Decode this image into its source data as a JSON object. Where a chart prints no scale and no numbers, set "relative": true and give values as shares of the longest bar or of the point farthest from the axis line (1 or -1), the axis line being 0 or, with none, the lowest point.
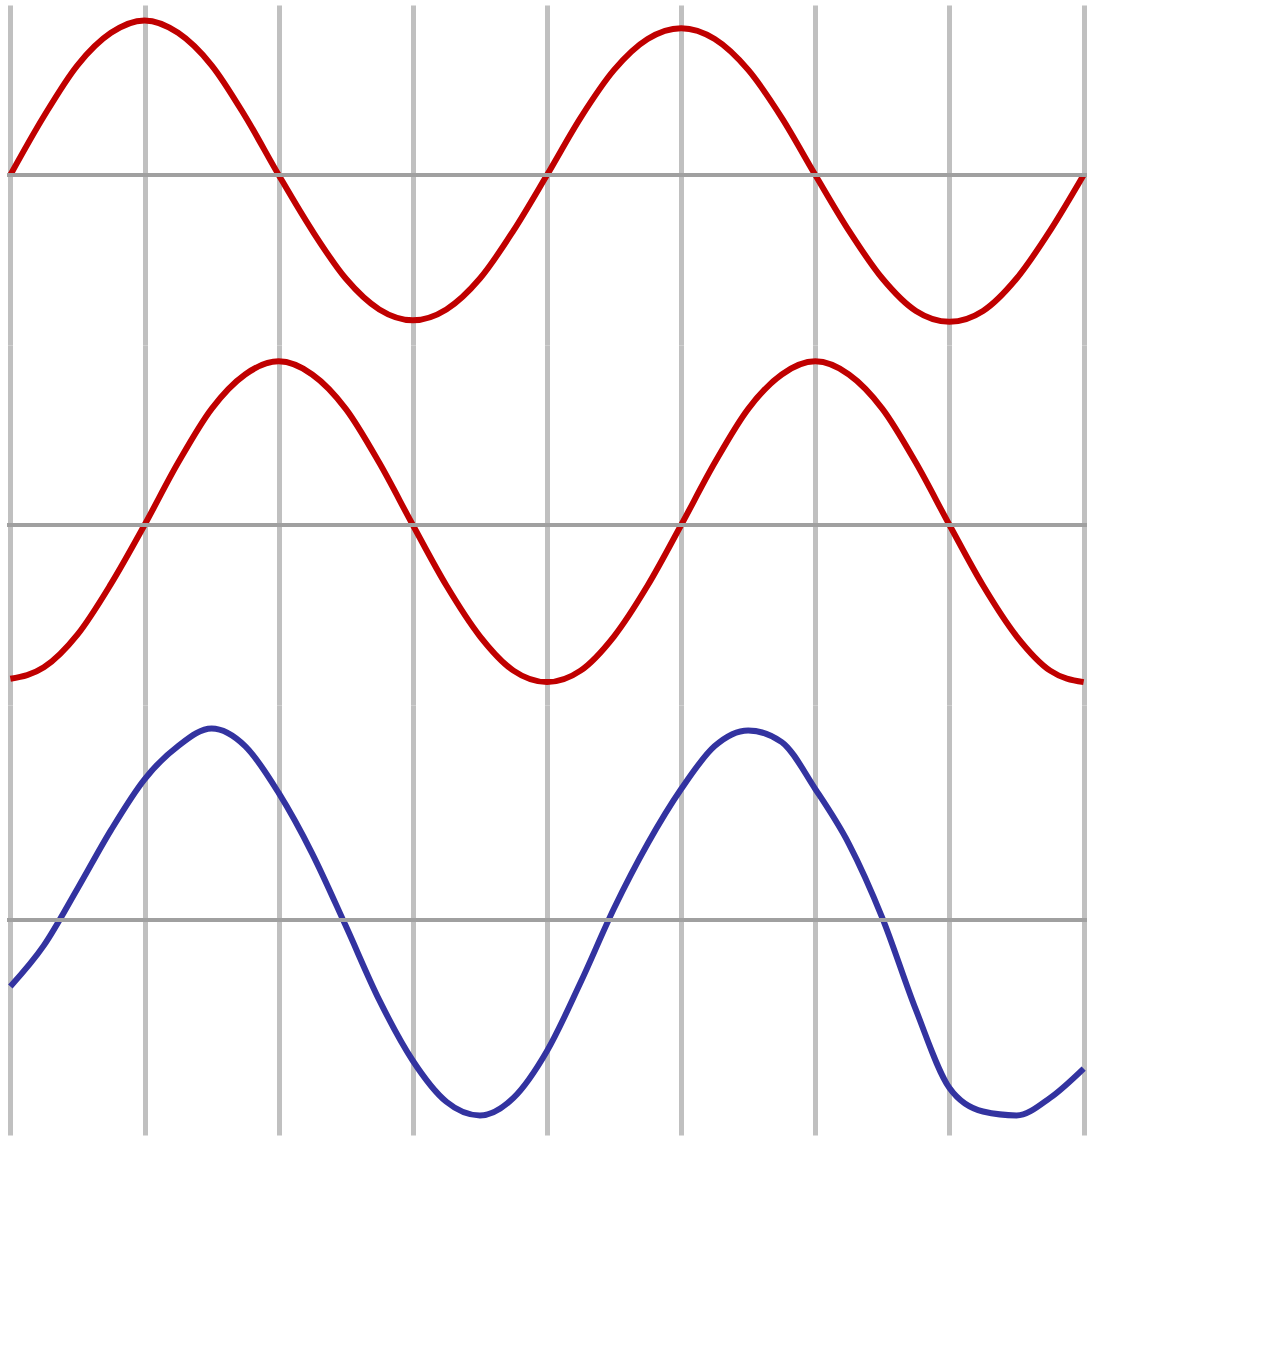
{
  "chart_data": [
    {
      "type": "line",
      "relative": true,
      "grid": true,
      "categories": [
        null,
        null,
        null,
        null,
        null,
        null,
        null,
        null,
        null,
        null,
        null,
        null,
        null,
        null,
        null,
        null,
        null,
        null,
        null,
        null,
        null,
        null,
        null,
        null,
        null,
        null,
        null,
        null,
        null,
        null,
        null,
        null,
        null
      ],
      "series": [
        {
          "color": "#c00000",
          "values": [
            0,
            0.38,
            0.71,
            0.92,
            1,
            0.92,
            0.71,
            0.38,
            0,
            -0.36,
            -0.67,
            -0.87,
            -0.94,
            -0.87,
            -0.67,
            -0.36,
            0,
            0.37,
            0.68,
            0.88,
            0.95,
            0.88,
            0.68,
            0.37,
            0,
            -0.36,
            -0.67,
            -0.88,
            -0.95,
            -0.88,
            -0.67,
            -0.36,
            0
          ]
        }
      ]
    },
    {
      "type": "line",
      "relative": true,
      "grid": true,
      "categories": [
        null,
        null,
        null,
        null,
        null,
        null,
        null,
        null,
        null,
        null,
        null,
        null,
        null,
        null,
        null,
        null,
        null,
        null,
        null,
        null,
        null,
        null,
        null,
        null,
        null,
        null,
        null,
        null,
        null,
        null,
        null,
        null,
        null
      ],
      "series": [
        {
          "color": "#c00000",
          "values": [
            -0.94,
            -0.87,
            -0.67,
            -0.36,
            0,
            0.38,
            0.71,
            0.92,
            1,
            0.92,
            0.71,
            0.38,
            0,
            -0.37,
            -0.68,
            -0.89,
            -0.96,
            -0.89,
            -0.68,
            -0.37,
            0,
            0.38,
            0.71,
            0.92,
            1,
            0.92,
            0.71,
            0.38,
            0,
            -0.37,
            -0.68,
            -0.89,
            -0.96
          ]
        }
      ]
    },
    {
      "type": "line",
      "relative": true,
      "grid": true,
      "categories": [
        null,
        null,
        null,
        null,
        null,
        null,
        null,
        null,
        null,
        null,
        null,
        null,
        null,
        null,
        null,
        null,
        null,
        null,
        null,
        null,
        null,
        null,
        null,
        null,
        null,
        null,
        null,
        null,
        null,
        null,
        null,
        null,
        null
      ],
      "series": [
        {
          "color": "#3333a0",
          "values": [
            -0.34,
            -0.13,
            0.16,
            0.46,
            0.72,
            0.89,
            0.98,
            0.89,
            0.65,
            0.34,
            -0.03,
            -0.41,
            -0.72,
            -0.93,
            -1,
            -0.91,
            -0.67,
            -0.32,
            0.06,
            0.39,
            0.67,
            0.89,
            0.97,
            0.91,
            0.67,
            0.39,
            0.01,
            -0.46,
            -0.86,
            -0.98,
            -1,
            -0.91,
            -0.76
          ]
        }
      ]
    }
  ]
}
